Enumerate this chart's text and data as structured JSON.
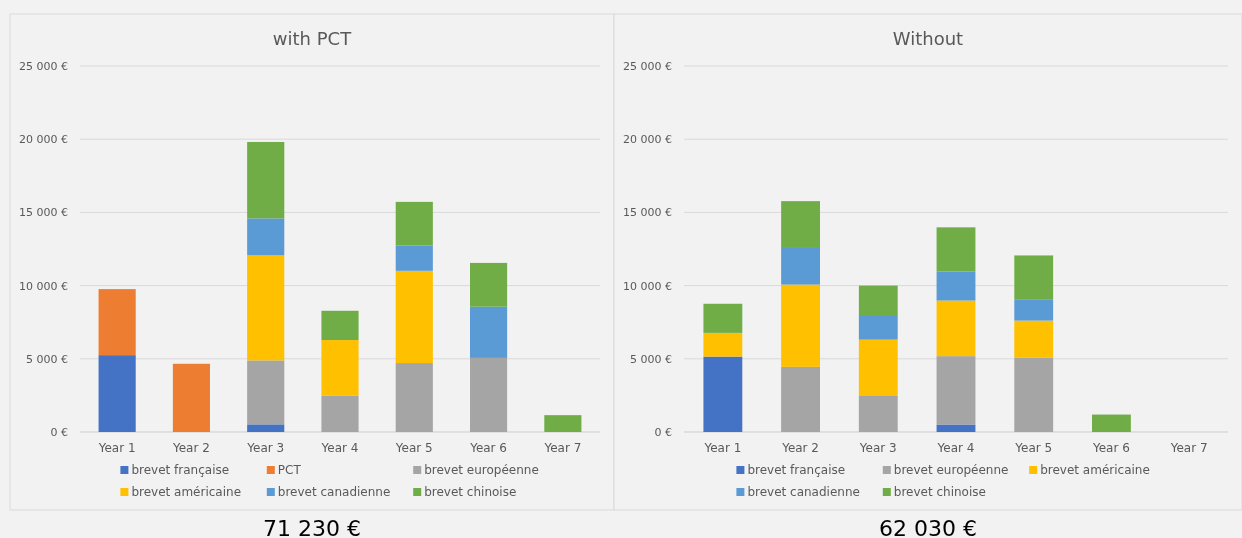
{
  "chart_data": [
    {
      "type": "bar",
      "title": "with PCT",
      "categories": [
        "Year 1",
        "Year 2",
        "Year 3",
        "Year 4",
        "Year 5",
        "Year 6",
        "Year 7"
      ],
      "stacked": true,
      "ylim": [
        0,
        25000
      ],
      "yticks": [
        {
          "value": 0,
          "label": "0 €"
        },
        {
          "value": 5000,
          "label": "5 000 €"
        },
        {
          "value": 10000,
          "label": "10 000 €"
        },
        {
          "value": 15000,
          "label": "15 000 €"
        },
        {
          "value": 20000,
          "label": "20 000 €"
        },
        {
          "value": 25000,
          "label": "25 000 €"
        }
      ],
      "grid": "y",
      "legend": "bottom",
      "annotations": [
        "71 230 €"
      ],
      "series": [
        {
          "name": "brevet française",
          "color": "#4472c4",
          "values": [
            5250,
            0,
            520,
            0,
            0,
            0,
            0
          ]
        },
        {
          "name": "PCT",
          "color": "#ed7d31",
          "values": [
            4510,
            4660,
            0,
            0,
            0,
            0,
            0
          ]
        },
        {
          "name": "brevet européenne",
          "color": "#a5a5a5",
          "values": [
            0,
            0,
            4370,
            2470,
            4710,
            5060,
            0
          ]
        },
        {
          "name": "brevet américaine",
          "color": "#ffc000",
          "values": [
            0,
            0,
            7180,
            3810,
            6300,
            0,
            0
          ]
        },
        {
          "name": "brevet canadienne",
          "color": "#5b9bd5",
          "values": [
            0,
            0,
            2520,
            0,
            1720,
            3500,
            0
          ]
        },
        {
          "name": "brevet chinoise",
          "color": "#70ad47",
          "values": [
            0,
            0,
            5220,
            2000,
            2990,
            2990,
            1150
          ]
        }
      ]
    },
    {
      "type": "bar",
      "title": "Without",
      "categories": [
        "Year 1",
        "Year 2",
        "Year 3",
        "Year 4",
        "Year 5",
        "Year 6",
        "Year 7"
      ],
      "stacked": true,
      "ylim": [
        0,
        25000
      ],
      "yticks": [
        {
          "value": 0,
          "label": "0 €"
        },
        {
          "value": 5000,
          "label": "5 000 €"
        },
        {
          "value": 10000,
          "label": "10 000 €"
        },
        {
          "value": 15000,
          "label": "15 000 €"
        },
        {
          "value": 20000,
          "label": "20 000 €"
        },
        {
          "value": 25000,
          "label": "25 000 €"
        }
      ],
      "grid": "y",
      "legend": "bottom",
      "annotations": [
        "62 030 €"
      ],
      "series": [
        {
          "name": "brevet française",
          "color": "#4472c4",
          "values": [
            5150,
            0,
            0,
            510,
            0,
            0,
            0
          ]
        },
        {
          "name": "brevet européenne",
          "color": "#a5a5a5",
          "values": [
            0,
            4450,
            2460,
            4670,
            5090,
            0,
            0
          ]
        },
        {
          "name": "brevet américaine",
          "color": "#ffc000",
          "values": [
            1620,
            5620,
            3850,
            3800,
            2520,
            0,
            0
          ]
        },
        {
          "name": "brevet canadienne",
          "color": "#5b9bd5",
          "values": [
            0,
            2500,
            1680,
            1990,
            1460,
            0,
            0
          ]
        },
        {
          "name": "brevet chinoise",
          "color": "#70ad47",
          "values": [
            1990,
            3200,
            2010,
            3010,
            2990,
            1190,
            0
          ]
        }
      ]
    }
  ]
}
